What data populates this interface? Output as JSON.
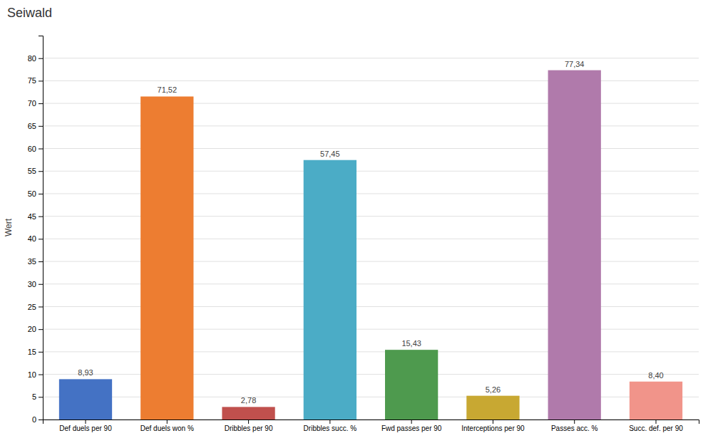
{
  "chart_data": {
    "type": "bar",
    "title": "Seiwald",
    "ylabel": "Wert",
    "categories": [
      "Def duels per 90",
      "Def duels won %",
      "Dribbles per 90",
      "Dribbles succ. %",
      "Fwd passes per 90",
      "Interceptions per 90",
      "Passes acc. %",
      "Succ. def. per 90"
    ],
    "values": [
      8.93,
      71.52,
      2.78,
      57.45,
      15.43,
      5.26,
      77.34,
      8.4
    ],
    "value_labels": [
      "8,93",
      "71,52",
      "2,78",
      "57,45",
      "15,43",
      "5,26",
      "77,34",
      "8,40"
    ],
    "colors": [
      "#4472c4",
      "#ed7d31",
      "#c0504d",
      "#4bacc6",
      "#4e9a4e",
      "#c8a832",
      "#b07aab",
      "#f1948a"
    ],
    "ylim": [
      0,
      85
    ],
    "yticks": [
      0,
      5,
      10,
      15,
      20,
      25,
      30,
      35,
      40,
      45,
      50,
      55,
      60,
      65,
      70,
      75,
      80
    ],
    "grid": true
  }
}
